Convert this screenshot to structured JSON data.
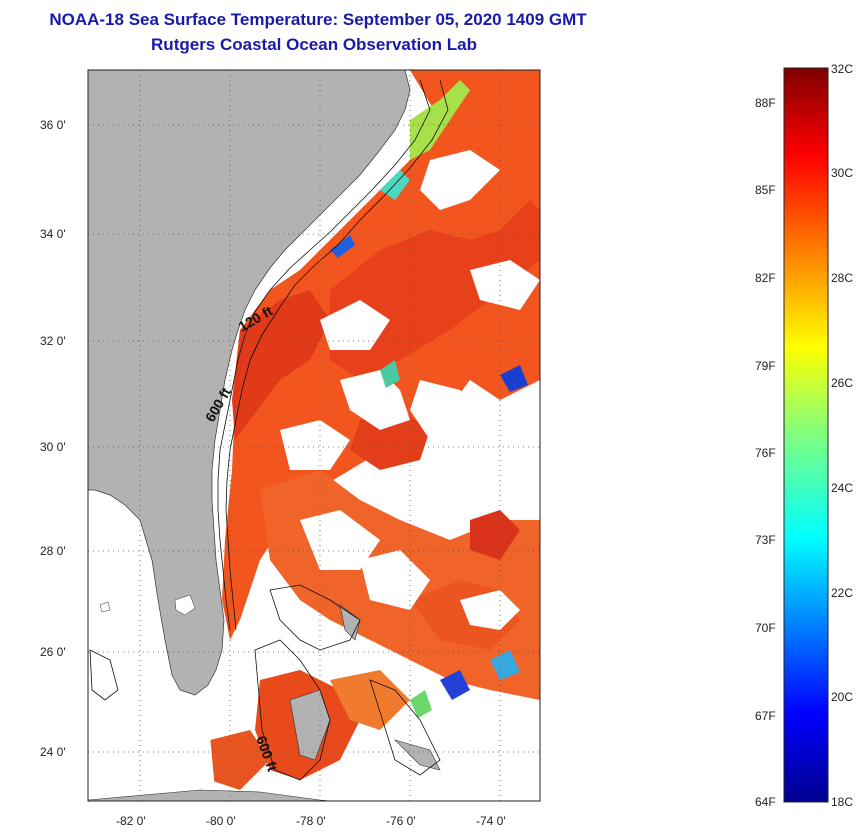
{
  "title": {
    "line1": "NOAA-18 Sea Surface Temperature:  September 05, 2020 1409 GMT",
    "line2": "Rutgers Coastal Ocean Observation Lab"
  },
  "map": {
    "lat_ticks": [
      "36 0'",
      "34 0'",
      "32 0'",
      "30 0'",
      "28 0'",
      "26 0'",
      "24 0'"
    ],
    "lon_ticks": [
      "-82 0'",
      "-80 0'",
      "-78 0'",
      "-76 0'",
      "-74 0'"
    ],
    "contour_labels": [
      "120 ft",
      "600 ft",
      "600 ft"
    ]
  },
  "colorbar": {
    "celsius": [
      "32C",
      "30C",
      "28C",
      "26C",
      "24C",
      "22C",
      "20C",
      "18C"
    ],
    "fahrenheit": [
      "88F",
      "85F",
      "82F",
      "79F",
      "76F",
      "73F",
      "70F",
      "67F",
      "64F"
    ]
  }
}
